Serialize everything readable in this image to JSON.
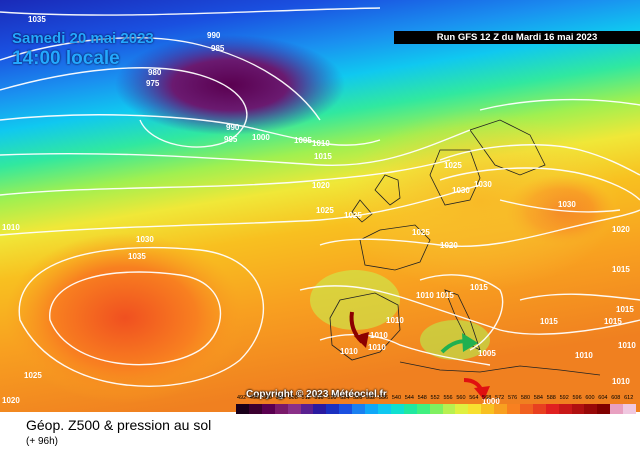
{
  "header": {
    "date_label": "Samedi 20 mai 2023",
    "time_label": "14:00 locale",
    "run_label": "Run GFS 12 Z du Mardi 16 mai 2023"
  },
  "footer": {
    "product_label": "Géop. Z500 & pression au sol",
    "lead_label": "(+ 96h)",
    "copyright_label": "Copyright © 2023 Météociel.fr"
  },
  "legend_scale": {
    "values": [
      "492",
      "496",
      "500",
      "504",
      "508",
      "512",
      "516",
      "520",
      "524",
      "528",
      "532",
      "536",
      "540",
      "544",
      "548",
      "552",
      "556",
      "560",
      "564",
      "568",
      "572",
      "576",
      "580",
      "584",
      "588",
      "592",
      "596",
      "600",
      "604",
      "608",
      "612"
    ],
    "colors": [
      "#1a001a",
      "#3b0030",
      "#5a0050",
      "#7a1a6a",
      "#8a3088",
      "#5a2090",
      "#2a1aa0",
      "#1a30c0",
      "#1a50e0",
      "#1a80f0",
      "#10a8f8",
      "#10c8f0",
      "#10e0d0",
      "#20e8a0",
      "#40f080",
      "#80f060",
      "#b8f050",
      "#e0f040",
      "#f8e030",
      "#f8c020",
      "#f8a020",
      "#f88020",
      "#f06020",
      "#e84020",
      "#e02020",
      "#c81818",
      "#b01010",
      "#980808",
      "#800000",
      "#e8a0c0",
      "#f0c8e0"
    ]
  },
  "isobars": [
    {
      "text": "1035"
    },
    {
      "text": "990"
    },
    {
      "text": "985"
    },
    {
      "text": "980"
    },
    {
      "text": "975"
    },
    {
      "text": "990"
    },
    {
      "text": "995"
    },
    {
      "text": "1000"
    },
    {
      "text": "1005"
    },
    {
      "text": "1010"
    },
    {
      "text": "1015"
    },
    {
      "text": "1020"
    },
    {
      "text": "1025"
    },
    {
      "text": "1030"
    },
    {
      "text": "1035"
    },
    {
      "text": "1010"
    },
    {
      "text": "1025"
    },
    {
      "text": "1020"
    },
    {
      "text": "1025"
    },
    {
      "text": "1030"
    },
    {
      "text": "1030"
    },
    {
      "text": "1030"
    },
    {
      "text": "1025"
    },
    {
      "text": "1020"
    },
    {
      "text": "1015"
    },
    {
      "text": "1015"
    },
    {
      "text": "1015"
    },
    {
      "text": "1015"
    },
    {
      "text": "1010"
    },
    {
      "text": "1010"
    },
    {
      "text": "1010"
    },
    {
      "text": "1010"
    },
    {
      "text": "1005"
    },
    {
      "text": "1010"
    },
    {
      "text": "1000"
    },
    {
      "text": "1010"
    },
    {
      "text": "1010"
    },
    {
      "text": "1010"
    },
    {
      "text": "1025"
    },
    {
      "text": "1020"
    },
    {
      "text": "1015"
    },
    {
      "text": "1015"
    },
    {
      "text": "1010"
    }
  ],
  "arrows": [
    {
      "name": "dark-red-arrow",
      "color": "#8b0000"
    },
    {
      "name": "green-arrow",
      "color": "#20b050"
    },
    {
      "name": "red-arrow",
      "color": "#e01010"
    }
  ]
}
